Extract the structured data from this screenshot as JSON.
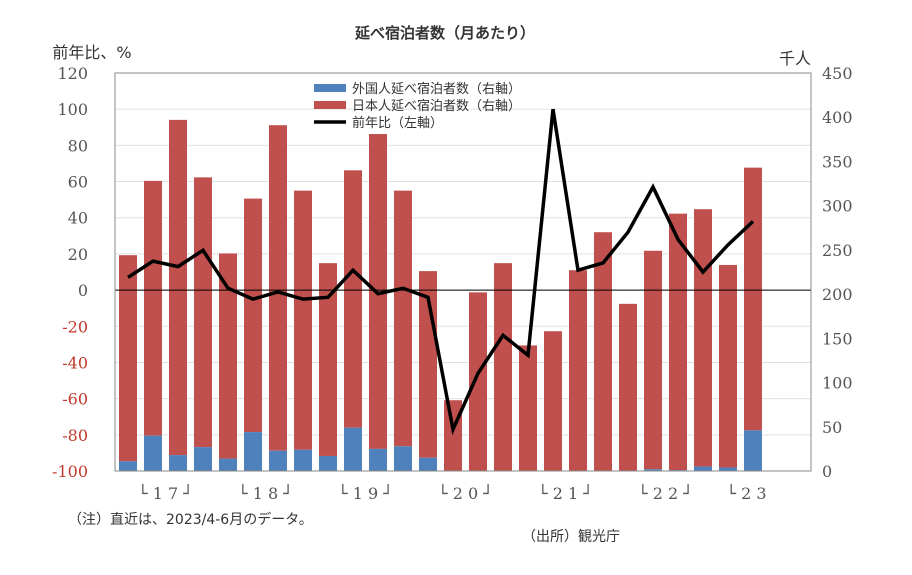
{
  "chart_data": {
    "type": "bar",
    "title": "延べ宿泊者数（月あたり）",
    "ylabel_left": "前年比、%",
    "ylabel_right": "千人",
    "ylim_left": [
      -100,
      120
    ],
    "yticks_left": [
      -100,
      -80,
      -60,
      -40,
      -20,
      0,
      20,
      40,
      60,
      80,
      100,
      120
    ],
    "ylim_right": [
      0,
      450
    ],
    "yticks_right": [
      0,
      50,
      100,
      150,
      200,
      250,
      300,
      350,
      400,
      450
    ],
    "grid": true,
    "legend_position": "top-center",
    "categories": [
      "17Q1",
      "17Q2",
      "17Q3",
      "17Q4",
      "18Q1",
      "18Q2",
      "18Q3",
      "18Q4",
      "19Q1",
      "19Q2",
      "19Q3",
      "19Q4",
      "20Q1",
      "20Q2",
      "20Q3",
      "20Q4",
      "21Q1",
      "21Q2",
      "21Q3",
      "21Q4",
      "22Q1",
      "22Q2",
      "22Q3",
      "22Q4",
      "23Q1",
      "23Q2"
    ],
    "year_labels": [
      "└ 1 7 ┘",
      "└ 1 8 ┘",
      "└ 1 9 ┘",
      "└ 2 0 ┘",
      "└ 2 1 ┘",
      "└ 2 2 ┘",
      "└ 2 3"
    ],
    "series": [
      {
        "name": "外国人延べ宿泊者数（右軸）",
        "axis": "right",
        "color": "#4f81bd",
        "type": "bar-stacked",
        "values": [
          11,
          40,
          18,
          27,
          14,
          44,
          23,
          24,
          17,
          49,
          25,
          28,
          15,
          0,
          0,
          0,
          0,
          0,
          0,
          0,
          0,
          2,
          1,
          5,
          4,
          46
        ]
      },
      {
        "name": "日本人延べ宿泊者数（右軸）",
        "axis": "right",
        "color": "#c0504d",
        "type": "bar-stacked",
        "values": [
          233,
          288,
          379,
          305,
          232,
          264,
          368,
          293,
          218,
          291,
          356,
          289,
          211,
          80,
          202,
          235,
          142,
          158,
          227,
          270,
          189,
          247,
          290,
          291,
          229,
          297
        ]
      },
      {
        "name": "前年比（左軸）",
        "axis": "left",
        "color": "#000000",
        "type": "line",
        "values": [
          7,
          16,
          13,
          22,
          1,
          -5,
          -1,
          -5,
          -4,
          11,
          -2,
          1,
          -4,
          -77,
          -46,
          -25,
          -36,
          100,
          11,
          15,
          32,
          57,
          28,
          10,
          25,
          38
        ]
      }
    ],
    "notes": {
      "note": "（注）直近は、2023/4-6月のデータ。",
      "source": "（出所）観光庁"
    }
  }
}
